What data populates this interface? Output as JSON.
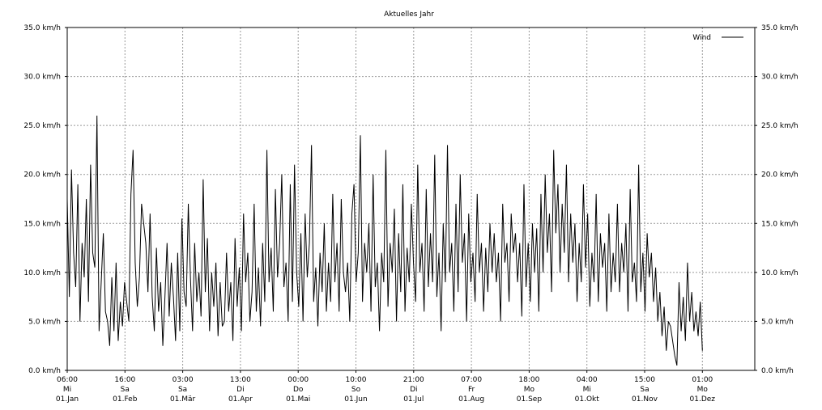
{
  "chart_data": {
    "type": "line",
    "title": "Aktuelles Jahr",
    "ylim": [
      0,
      35
    ],
    "y_ticks": [
      {
        "value": 0,
        "label": "0.0 km/h"
      },
      {
        "value": 5,
        "label": "5.0 km/h"
      },
      {
        "value": 10,
        "label": "10.0 km/h"
      },
      {
        "value": 15,
        "label": "15.0 km/h"
      },
      {
        "value": 20,
        "label": "20.0 km/h"
      },
      {
        "value": 25,
        "label": "25.0 km/h"
      },
      {
        "value": 30,
        "label": "30.0 km/h"
      },
      {
        "value": 35,
        "label": "35.0 km/h"
      }
    ],
    "x_ticks": [
      {
        "time": "06:00",
        "day": "Mi",
        "date": "01.Jan"
      },
      {
        "time": "16:00",
        "day": "Sa",
        "date": "01.Feb"
      },
      {
        "time": "03:00",
        "day": "Sa",
        "date": "01.Mär"
      },
      {
        "time": "13:00",
        "day": "Di",
        "date": "01.Apr"
      },
      {
        "time": "00:00",
        "day": "Do",
        "date": "01.Mai"
      },
      {
        "time": "10:00",
        "day": "So",
        "date": "01.Jun"
      },
      {
        "time": "21:00",
        "day": "Di",
        "date": "01.Jul"
      },
      {
        "time": "07:00",
        "day": "Fr",
        "date": "01.Aug"
      },
      {
        "time": "18:00",
        "day": "Mo",
        "date": "01.Sep"
      },
      {
        "time": "04:00",
        "day": "Mi",
        "date": "01.Okt"
      },
      {
        "time": "15:00",
        "day": "Sa",
        "date": "01.Nov"
      },
      {
        "time": "01:00",
        "day": "Mo",
        "date": "01.Dez"
      }
    ],
    "grid": true,
    "legend_position": "top-right",
    "series": [
      {
        "name": "Wind",
        "color": "#000000",
        "x_start": 0,
        "x_step_days": 1,
        "values": [
          17.5,
          7.5,
          20.5,
          12,
          8.5,
          19,
          5,
          13,
          9.5,
          17.5,
          7,
          21,
          12,
          10.5,
          26,
          4,
          9,
          14,
          6,
          5,
          2.5,
          9.5,
          4,
          11,
          3,
          7,
          4.5,
          9,
          7,
          5,
          18,
          22.5,
          11,
          6.5,
          9.5,
          17,
          15,
          13,
          8,
          16,
          7.5,
          4,
          12.5,
          6,
          9,
          2.5,
          7.5,
          13,
          5.5,
          11,
          7.5,
          3,
          12,
          4,
          15.5,
          8,
          6.5,
          17,
          9.5,
          4,
          13,
          7,
          10,
          5.5,
          19.5,
          8,
          13.5,
          4,
          10,
          6.5,
          11,
          3.5,
          9,
          4.5,
          5,
          12,
          6,
          9,
          3,
          13.5,
          6.5,
          10.5,
          4,
          16,
          9,
          12,
          5,
          8,
          17,
          6,
          10.5,
          4.5,
          13,
          7,
          22.5,
          9,
          12.5,
          6,
          18.5,
          9.5,
          13,
          20,
          8.5,
          11,
          5,
          19,
          7,
          21,
          10,
          6.5,
          14,
          5,
          16,
          9.5,
          13,
          23,
          7,
          10.5,
          4.5,
          12,
          8,
          15,
          6,
          11,
          7,
          18,
          9,
          13,
          6,
          17.5,
          10,
          8,
          11,
          5,
          16,
          19,
          9,
          12,
          24,
          7,
          13,
          10,
          15,
          6,
          20,
          8.5,
          11,
          4,
          12,
          9,
          22.5,
          6.5,
          13,
          10,
          16.5,
          5,
          14,
          8,
          19,
          6,
          12.5,
          9,
          17,
          11,
          7,
          21,
          10,
          13,
          6,
          18.5,
          8.5,
          14,
          9,
          22,
          7.5,
          12,
          4,
          15,
          9,
          23,
          10,
          13,
          6,
          17,
          8,
          20,
          11,
          14,
          5,
          16,
          9,
          12,
          7,
          18,
          10,
          13,
          6,
          12.5,
          8,
          15,
          10,
          14,
          9,
          12,
          5,
          17,
          11,
          13,
          7,
          16,
          12,
          14,
          9,
          13,
          5.5,
          19,
          8.5,
          13,
          7,
          15,
          10,
          14.5,
          6,
          18,
          10,
          20,
          12,
          16,
          8,
          22.5,
          14,
          19,
          10,
          17,
          12,
          21,
          9,
          16,
          11,
          15,
          7,
          13,
          9,
          19,
          10.5,
          16,
          6.5,
          12,
          9,
          18,
          7,
          14,
          10.5,
          13,
          6,
          16,
          8,
          12,
          9,
          17,
          8,
          13,
          10,
          15,
          6,
          18.5,
          9,
          11,
          7,
          21,
          8,
          12,
          6,
          14,
          9.5,
          12,
          7,
          10.5,
          5,
          8,
          3.5,
          6.5,
          2,
          5,
          4.5,
          3,
          1.5,
          0.5,
          9,
          4,
          7.5,
          3,
          11,
          5,
          8,
          4,
          6,
          3.5,
          7,
          2
        ]
      }
    ]
  }
}
